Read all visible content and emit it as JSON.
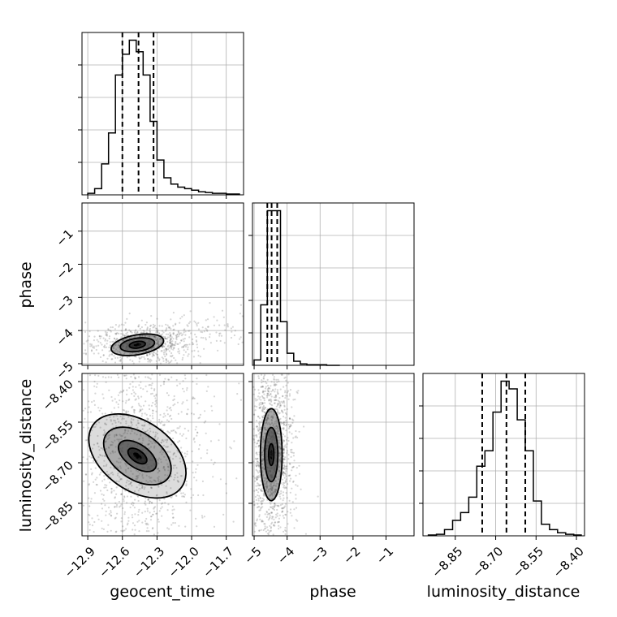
{
  "chart_data": {
    "type": "corner",
    "parameters": [
      "geocent_time",
      "phase",
      "luminosity_distance"
    ],
    "grid": true,
    "colors": {
      "line": "#000000",
      "grid": "#b0b0b0",
      "sample": "#444444"
    },
    "axes": {
      "geocent_time": {
        "range": [
          -12.95,
          -11.55
        ],
        "ticks": [
          -12.9,
          -12.6,
          -12.3,
          -12.0,
          -11.7
        ],
        "tick_labels": [
          "−12.9",
          "−12.6",
          "−12.3",
          "−12.0",
          "−11.7"
        ]
      },
      "phase": {
        "range": [
          -5.05,
          -0.15
        ],
        "ticks": [
          -5,
          -4,
          -3,
          -2,
          -1
        ],
        "tick_labels": [
          "−5",
          "−4",
          "−3",
          "−2",
          "−1"
        ]
      },
      "luminosity_distance": {
        "range": [
          -8.97,
          -8.37
        ],
        "ticks": [
          -8.85,
          -8.7,
          -8.55,
          -8.4
        ],
        "tick_labels": [
          "−8.85",
          "−8.70",
          "−8.55",
          "−8.40"
        ]
      }
    },
    "marginals": [
      {
        "parameter": "geocent_time",
        "bin_edges": [
          -12.9,
          -12.84,
          -12.78,
          -12.72,
          -12.66,
          -12.6,
          -12.54,
          -12.48,
          -12.42,
          -12.36,
          -12.3,
          -12.24,
          -12.18,
          -12.12,
          -12.06,
          -12.0,
          -11.94,
          -11.88,
          -11.82,
          -11.76,
          -11.7,
          -11.64,
          -11.58
        ],
        "counts": [
          2,
          8,
          40,
          80,
          155,
          182,
          200,
          185,
          155,
          95,
          45,
          22,
          14,
          10,
          8,
          6,
          4,
          3,
          2,
          2,
          1,
          1
        ],
        "quantiles": [
          -12.6,
          -12.46,
          -12.33
        ]
      },
      {
        "parameter": "phase",
        "bin_edges": [
          -5.0,
          -4.8,
          -4.6,
          -4.4,
          -4.2,
          -4.0,
          -3.8,
          -3.6,
          -3.4,
          -3.2,
          -3.0,
          -2.8,
          -2.6,
          -2.4
        ],
        "counts": [
          8,
          90,
          230,
          230,
          65,
          18,
          6,
          2,
          1,
          1,
          1,
          0,
          0
        ],
        "quantiles": [
          -4.6,
          -4.47,
          -4.3
        ]
      },
      {
        "parameter": "luminosity_distance",
        "bin_edges": [
          -8.95,
          -8.92,
          -8.89,
          -8.86,
          -8.83,
          -8.8,
          -8.77,
          -8.74,
          -8.71,
          -8.68,
          -8.65,
          -8.62,
          -8.59,
          -8.56,
          -8.53,
          -8.5,
          -8.47,
          -8.44,
          -8.41,
          -8.38
        ],
        "counts": [
          1,
          2,
          8,
          20,
          30,
          50,
          90,
          110,
          160,
          200,
          190,
          150,
          110,
          45,
          15,
          8,
          4,
          2,
          1
        ],
        "quantiles": [
          -8.75,
          -8.66,
          -8.59
        ]
      }
    ],
    "pairs": [
      {
        "x": "geocent_time",
        "y": "phase",
        "center": [
          -12.47,
          -4.43
        ],
        "contours": [
          {
            "rx": 0.07,
            "ry": 0.1,
            "angle": 8
          },
          {
            "rx": 0.15,
            "ry": 0.2,
            "angle": 8
          },
          {
            "rx": 0.23,
            "ry": 0.3,
            "angle": 10
          }
        ]
      },
      {
        "x": "geocent_time",
        "y": "luminosity_distance",
        "center": [
          -12.47,
          -8.675
        ],
        "contours": [
          {
            "rx": 0.05,
            "ry": 0.04,
            "angle": 55
          },
          {
            "rx": 0.1,
            "ry": 0.08,
            "angle": 55
          },
          {
            "rx": 0.2,
            "ry": 0.14,
            "angle": 55
          },
          {
            "rx": 0.3,
            "ry": 0.2,
            "angle": 55
          }
        ]
      },
      {
        "x": "phase",
        "y": "luminosity_distance",
        "center": [
          -4.48,
          -8.67
        ],
        "contours": [
          {
            "rx": 0.08,
            "ry": 0.04,
            "angle": 0
          },
          {
            "rx": 0.2,
            "ry": 0.1,
            "angle": 0
          },
          {
            "rx": 0.33,
            "ry": 0.17,
            "angle": 0
          }
        ]
      }
    ]
  }
}
